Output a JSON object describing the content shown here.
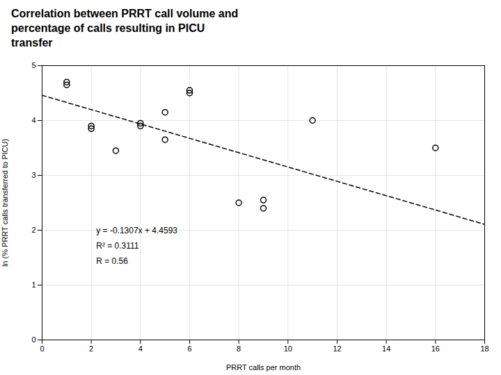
{
  "chart_data": {
    "type": "scatter",
    "title": "Correlation between PRRT call volume and\npercentage of calls resulting in PICU\ntransfer",
    "xlabel": "PRRT calls per month",
    "ylabel": "ln (% PRRT calls transferred to PICU)",
    "series": [
      {
        "type": "scatter",
        "marker": "circle",
        "x": [
          1,
          1,
          2,
          2,
          3,
          4,
          4,
          5,
          5,
          6,
          6,
          8,
          9,
          9,
          11,
          16
        ],
        "values": [
          4.65,
          4.7,
          3.85,
          3.9,
          3.45,
          3.9,
          3.95,
          4.15,
          3.65,
          4.55,
          4.5,
          2.5,
          2.4,
          2.55,
          4.0,
          3.5
        ]
      },
      {
        "type": "line",
        "line_style": "dashed",
        "x": [
          0,
          18
        ],
        "values": [
          4.4593,
          2.1067
        ]
      }
    ],
    "annotations": [
      {
        "text": "y = -0.1307x + 4.4593",
        "x": 2.2,
        "y": 2.05
      },
      {
        "text": "R² = 0.3111",
        "x": 2.2,
        "y": 1.77
      },
      {
        "text": "R = 0.56",
        "x": 2.2,
        "y": 1.49
      }
    ],
    "xlim": [
      0,
      18
    ],
    "ylim": [
      0,
      5
    ],
    "xticks": [
      0,
      2,
      4,
      6,
      8,
      10,
      12,
      14,
      16,
      18
    ],
    "yticks": [
      0,
      1,
      2,
      3,
      4,
      5
    ],
    "grid": true
  }
}
